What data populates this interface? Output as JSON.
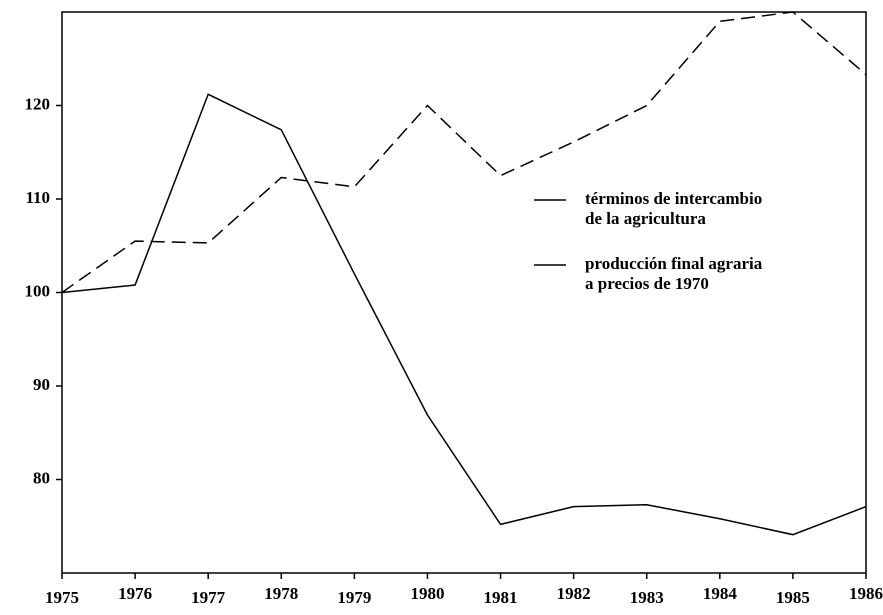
{
  "chart_data": {
    "type": "line",
    "x": [
      1975,
      1976,
      1977,
      1978,
      1979,
      1980,
      1981,
      1982,
      1983,
      1984,
      1985,
      1986
    ],
    "xlim": [
      1975,
      1986
    ],
    "xticks": [
      1975,
      1976,
      1977,
      1978,
      1979,
      1980,
      1981,
      1982,
      1983,
      1984,
      1985,
      1986
    ],
    "ylim": [
      70,
      130
    ],
    "yticks": [
      80,
      90,
      100,
      110,
      120
    ],
    "series": [
      {
        "name": "términos de intercambio\nde la agricultura",
        "color": "#000000",
        "dash": "solid",
        "values": [
          100,
          100.8,
          121.2,
          117.4,
          102,
          86.9,
          75.2,
          77.1,
          77.3,
          75.8,
          74.1,
          77.1
        ]
      },
      {
        "name": "producción final agraria\na precios de 1970",
        "color": "#000000",
        "dash": "dashed",
        "values": [
          100,
          105.5,
          105.3,
          112.3,
          111.3,
          120,
          112.5,
          116.1,
          120,
          129,
          130,
          123.3
        ]
      }
    ],
    "legend": "upper right"
  }
}
